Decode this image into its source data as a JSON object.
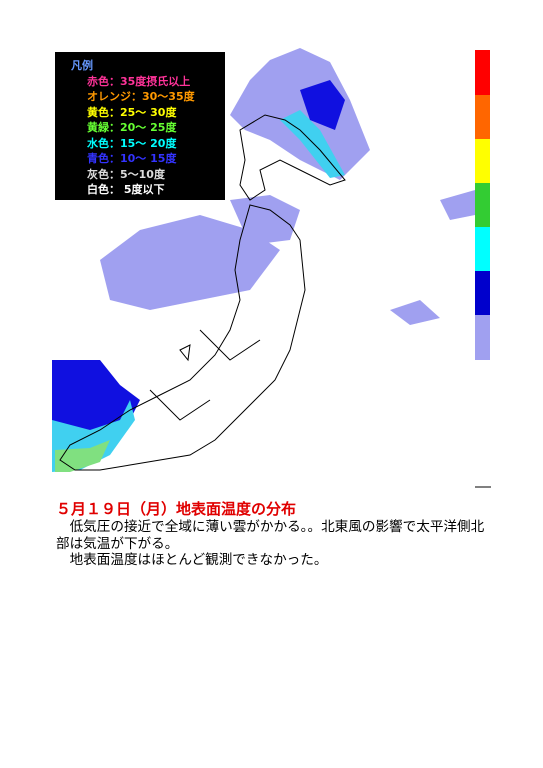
{
  "legend": {
    "title": "凡例",
    "items": [
      "赤色：35度摂氏以上",
      "オレンジ：30～35度",
      "黄色：25～ 30度",
      "黄緑：20～ 25度",
      "水色：15～ 20度",
      "青色：10～ 15度",
      "灰色：5～10度",
      "白色： 5度以下"
    ]
  },
  "heading": "５月１９日（月）地表面温度の分布",
  "paragraphs": [
    "　低気圧の接近で全域に薄い雲がかかる。。北東風の影響で太平洋側北部は気温が下がる。",
    "　地表面温度はほとんど観測できなかった。"
  ]
}
